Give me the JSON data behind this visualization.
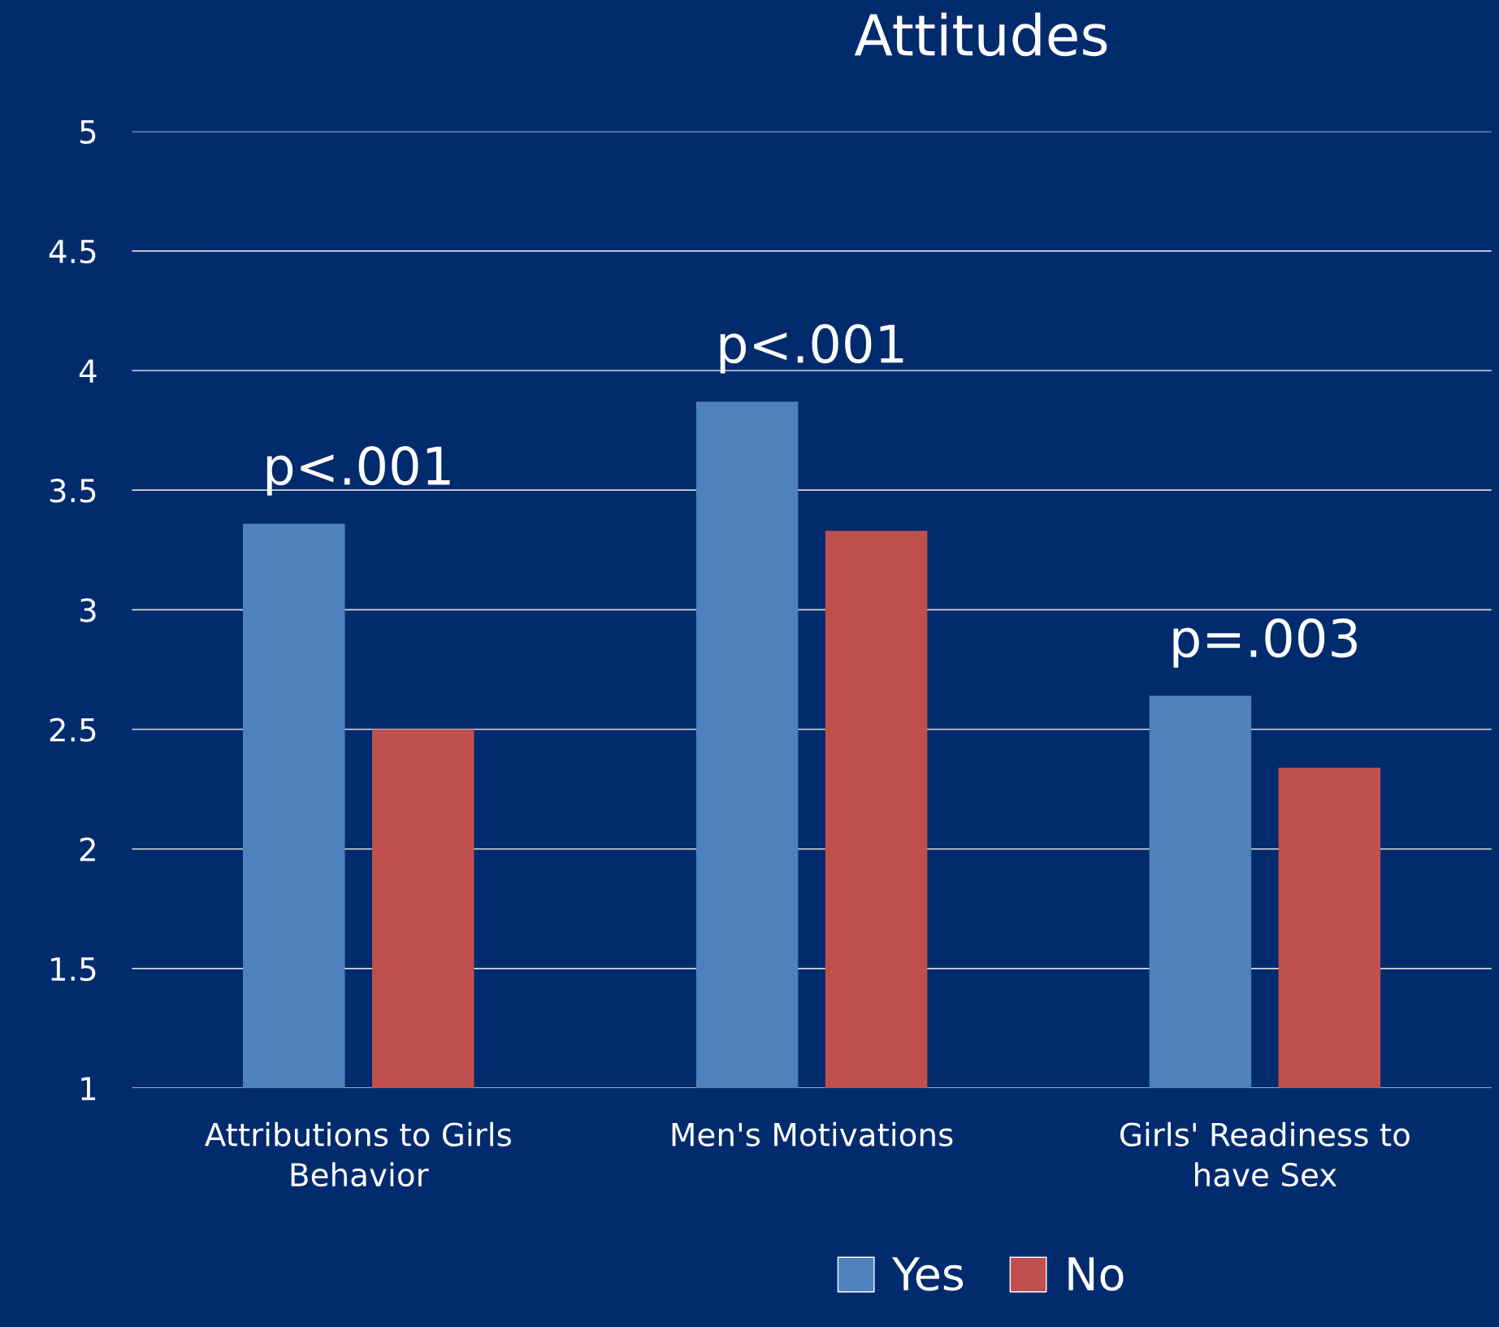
{
  "chart_data": {
    "type": "bar",
    "title": "Attitudes",
    "categories": [
      "Attributions to Girls\nBehavior",
      "Men's Motivations",
      "Girls' Readiness to\nhave Sex"
    ],
    "series": [
      {
        "name": "Yes",
        "color": "#4f81bd",
        "values": [
          3.36,
          3.87,
          2.64
        ]
      },
      {
        "name": "No",
        "color": "#c0504d",
        "values": [
          2.5,
          3.33,
          2.34
        ]
      }
    ],
    "ylim": [
      1,
      5
    ],
    "yticks": [
      1,
      1.5,
      2,
      2.5,
      3,
      3.5,
      4,
      4.5,
      5
    ],
    "grid": "y",
    "legend": "bottom",
    "annotations": [
      "p<.001",
      "p<.001",
      "p=.003"
    ]
  }
}
